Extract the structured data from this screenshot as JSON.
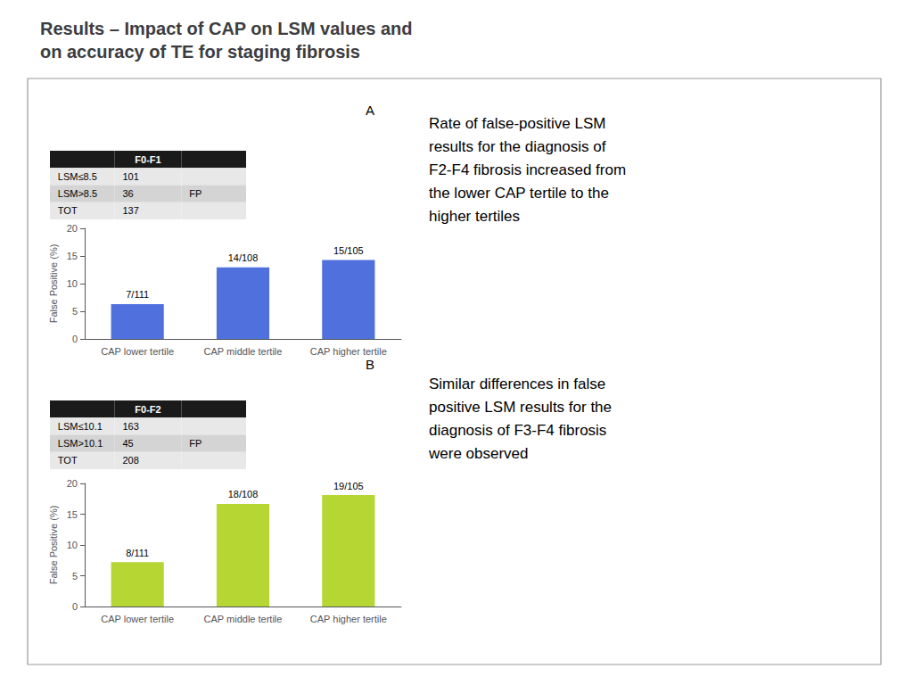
{
  "title": "Results – Impact of CAP on LSM values and\non accuracy of TE for staging fibrosis",
  "chart_data": [
    {
      "type": "bar",
      "label": "A",
      "table": {
        "header": "F0-F1",
        "rows": [
          [
            "LSM≤8.5",
            "101",
            null
          ],
          [
            "LSM>8.5",
            "36",
            "FP"
          ],
          [
            "TOT",
            "137",
            null
          ]
        ]
      },
      "annotation": "Rate of false-positive LSM\nresults for the diagnosis of\nF2-F4 fibrosis increased from\nthe lower CAP tertile to the\nhigher tertiles",
      "categories": [
        "CAP lower tertile",
        "CAP middle tertile",
        "CAP higher tertile"
      ],
      "values": [
        6.31,
        12.96,
        14.29
      ],
      "value_labels": [
        "7/111",
        "14/108",
        "15/105"
      ],
      "ylabel": "False Positive (%)",
      "ylim": [
        0,
        20
      ],
      "yticks": [
        0,
        5,
        10,
        15,
        20
      ],
      "grid": false
    },
    {
      "type": "bar",
      "label": "B",
      "table": {
        "header": "F0-F2",
        "rows": [
          [
            "LSM≤10.1",
            "163",
            null
          ],
          [
            "LSM>10.1",
            "45",
            "FP"
          ],
          [
            "TOT",
            "208",
            null
          ]
        ]
      },
      "annotation": "Similar differences in false\npositive LSM results for the\ndiagnosis of F3-F4 fibrosis\nwere observed",
      "categories": [
        "CAP lower tertile",
        "CAP middle tertile",
        "CAP higher tertile"
      ],
      "values": [
        7.21,
        16.67,
        18.1
      ],
      "value_labels": [
        "8/111",
        "18/108",
        "19/105"
      ],
      "ylabel": "False Positive (%)",
      "ylim": [
        0,
        20
      ],
      "yticks": [
        0,
        5,
        10,
        15,
        20
      ],
      "grid": false
    }
  ]
}
